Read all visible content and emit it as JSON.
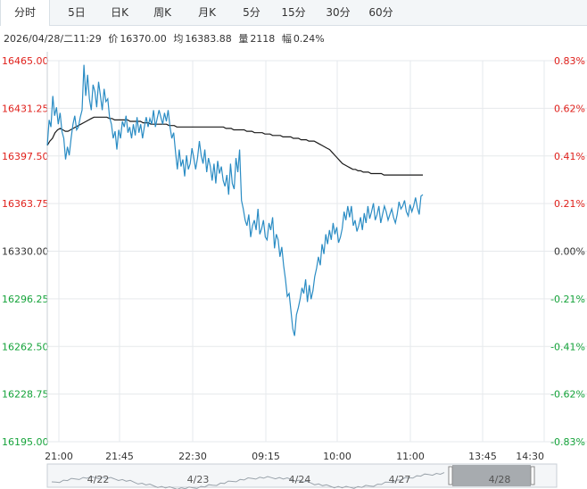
{
  "tabs": [
    {
      "label": "分时",
      "active": true
    },
    {
      "label": "5日",
      "active": false
    },
    {
      "label": "日K",
      "active": false
    },
    {
      "label": "周K",
      "active": false
    },
    {
      "label": "月K",
      "active": false
    },
    {
      "label": "5分",
      "active": false
    },
    {
      "label": "15分",
      "active": false
    },
    {
      "label": "30分",
      "active": false
    },
    {
      "label": "60分",
      "active": false
    }
  ],
  "info": {
    "datetime": "2026/04/28/二11:29",
    "price_label": "价",
    "price": "16370.00",
    "avg_label": "均",
    "avg": "16383.88",
    "volume_label": "量",
    "volume": "2118",
    "change_label": "幅",
    "change": "0.24%"
  },
  "colors": {
    "price_line": "#2a8cc4",
    "avg_line": "#1a1a1a",
    "up_text": "#e0201b",
    "down_text": "#15a33a",
    "neutral_text": "#333333",
    "grid": "#e6e9ec"
  },
  "chart_data": {
    "type": "line",
    "ylim": [
      16195.0,
      16465.0
    ],
    "base_price": 16330.0,
    "y_ticks": [
      "16465.00",
      "16431.25",
      "16397.50",
      "16363.75",
      "16330.00",
      "16296.25",
      "16262.50",
      "16228.75",
      "16195.00"
    ],
    "pct_ticks": [
      "0.83%",
      "0.62%",
      "0.41%",
      "0.21%",
      "0.00%",
      "-0.21%",
      "-0.41%",
      "-0.62%",
      "-0.83%"
    ],
    "x_ticks": [
      "21:00",
      "21:45",
      "22:30",
      "09:15",
      "10:00",
      "11:00",
      "13:45",
      "14:30"
    ],
    "grid": true,
    "series": [
      {
        "values": [
          16405,
          16423,
          16418,
          16440,
          16426,
          16432,
          16420,
          16428,
          16415,
          16410,
          16395,
          16404,
          16398,
          16410,
          16420,
          16426,
          16416,
          16418,
          16425,
          16430,
          16462,
          16440,
          16455,
          16438,
          16430,
          16448,
          16443,
          16432,
          16450,
          16440,
          16430,
          16445,
          16436,
          16438,
          16425,
          16420,
          16410,
          16415,
          16402,
          16416,
          16410,
          16422,
          16418,
          16426,
          16414,
          16418,
          16410,
          16420,
          16412,
          16425,
          16414,
          16420,
          16410,
          16418,
          16425,
          16418,
          16424,
          16420,
          16430,
          16418,
          16424,
          16430,
          16425,
          16420,
          16428,
          16422,
          16430,
          16418,
          16410,
          16414,
          16400,
          16388,
          16402,
          16390,
          16395,
          16383,
          16398,
          16388,
          16392,
          16403,
          16396,
          16388,
          16396,
          16408,
          16398,
          16392,
          16402,
          16386,
          16396,
          16390,
          16380,
          16392,
          16378,
          16394,
          16385,
          16390,
          16380,
          16376,
          16384,
          16370,
          16392,
          16378,
          16374,
          16396,
          16386,
          16402,
          16366,
          16360,
          16352,
          16348,
          16356,
          16340,
          16348,
          16352,
          16345,
          16360,
          16342,
          16346,
          16352,
          16340,
          16338,
          16350,
          16345,
          16354,
          16332,
          16342,
          16338,
          16326,
          16333,
          16320,
          16310,
          16298,
          16300,
          16288,
          16275,
          16270,
          16285,
          16290,
          16296,
          16304,
          16300,
          16310,
          16294,
          16306,
          16296,
          16302,
          16312,
          16318,
          16326,
          16320,
          16335,
          16328,
          16342,
          16335,
          16345,
          16338,
          16350,
          16342,
          16347,
          16336,
          16340,
          16346,
          16358,
          16352,
          16362,
          16354,
          16362,
          16348,
          16352,
          16344,
          16348,
          16354,
          16345,
          16357,
          16350,
          16362,
          16353,
          16358,
          16364,
          16352,
          16356,
          16362,
          16350,
          16356,
          16362,
          16358,
          16352,
          16356,
          16360,
          16354,
          16350,
          16356,
          16365,
          16360,
          16362,
          16366,
          16358,
          16355,
          16363,
          16358,
          16362,
          16368,
          16361,
          16356,
          16369,
          16370
        ]
      },
      {
        "values": [
          16405,
          16408,
          16410,
          16414,
          16416,
          16417,
          16416,
          16415,
          16415,
          16416,
          16417,
          16418,
          16419,
          16420,
          16421,
          16422,
          16423,
          16424,
          16425,
          16425,
          16425,
          16425,
          16425,
          16425,
          16424,
          16424,
          16423,
          16423,
          16423,
          16423,
          16423,
          16423,
          16422,
          16422,
          16422,
          16422,
          16422,
          16421,
          16421,
          16421,
          16420,
          16420,
          16420,
          16420,
          16420,
          16420,
          16420,
          16419,
          16419,
          16419,
          16418,
          16418,
          16418,
          16418,
          16418,
          16418,
          16418,
          16418,
          16418,
          16418,
          16418,
          16418,
          16418,
          16418,
          16418,
          16418,
          16418,
          16418,
          16418,
          16417,
          16417,
          16417,
          16416,
          16416,
          16416,
          16416,
          16416,
          16415,
          16415,
          16415,
          16414,
          16414,
          16414,
          16414,
          16413,
          16413,
          16413,
          16412,
          16412,
          16412,
          16412,
          16411,
          16411,
          16411,
          16411,
          16410,
          16410,
          16410,
          16409,
          16409,
          16409,
          16408,
          16408,
          16408,
          16407,
          16406,
          16405,
          16404,
          16403,
          16402,
          16400,
          16398,
          16396,
          16394,
          16392,
          16391,
          16390,
          16389,
          16388,
          16388,
          16387,
          16387,
          16386,
          16386,
          16386,
          16385,
          16385,
          16385,
          16385,
          16385,
          16384,
          16384,
          16384,
          16384,
          16384,
          16384,
          16384,
          16384,
          16384,
          16384,
          16384,
          16384,
          16384,
          16384,
          16384,
          16384
        ]
      }
    ]
  },
  "navigator": {
    "date_labels": [
      "4/22",
      "4/23",
      "4/24",
      "4/27",
      "4/28"
    ]
  }
}
